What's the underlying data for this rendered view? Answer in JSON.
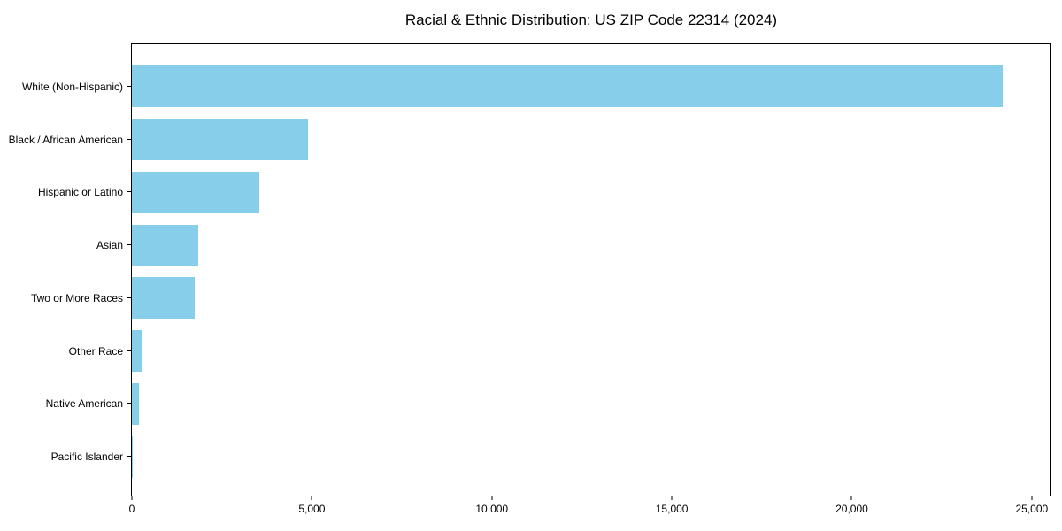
{
  "page": {
    "background_color": "#ffffff",
    "text_color": "#000000"
  },
  "chart_data": {
    "type": "bar",
    "orientation": "horizontal",
    "title": "Racial & Ethnic Distribution: US ZIP Code 22314 (2024)",
    "categories": [
      "White (Non-Hispanic)",
      "Black / African American",
      "Hispanic or Latino",
      "Asian",
      "Two or More Races",
      "Other Race",
      "Native American",
      "Pacific Islander"
    ],
    "values": [
      24200,
      4900,
      3530,
      1840,
      1740,
      270,
      190,
      30
    ],
    "bar_color": "#87CEEB",
    "xlabel": "",
    "ylabel": "",
    "xlim": [
      0,
      25520
    ],
    "x_ticks": [
      0,
      5000,
      10000,
      15000,
      20000,
      25000
    ],
    "x_tick_labels": [
      "0",
      "5,000",
      "10,000",
      "15,000",
      "20,000",
      "25,000"
    ],
    "grid": false,
    "legend": null,
    "spines": "all-four-black"
  }
}
